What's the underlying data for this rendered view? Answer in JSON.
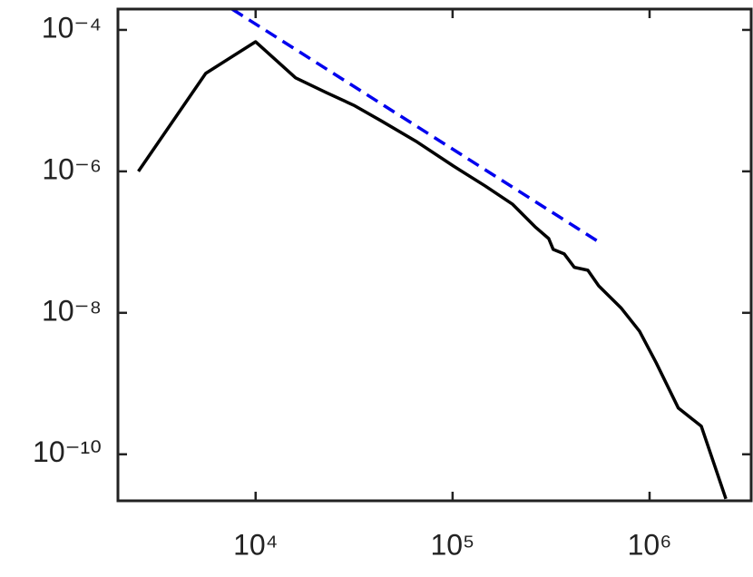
{
  "chart_data": {
    "type": "line",
    "xscale": "log",
    "yscale": "log",
    "xlim": [
      2000,
      3280000
    ],
    "ylim": [
      2.2e-11,
      0.000197
    ],
    "xticks": [
      {
        "value": 10000,
        "label": "10⁴"
      },
      {
        "value": 100000,
        "label": "10⁵"
      },
      {
        "value": 1000000,
        "label": "10⁶"
      }
    ],
    "yticks": [
      {
        "value": 0.0001,
        "label": "10⁻⁴"
      },
      {
        "value": 1e-06,
        "label": "10⁻⁶"
      },
      {
        "value": 1e-08,
        "label": "10⁻⁸"
      },
      {
        "value": 1e-10,
        "label": "10⁻¹⁰"
      }
    ],
    "series": [
      {
        "color": "#000000",
        "dash": false,
        "x": [
          2540,
          5580,
          10000,
          15960,
          22850,
          31500,
          43300,
          66100,
          101000,
          146600,
          201000,
          262000,
          307600,
          324000,
          369000,
          415000,
          486000,
          552000,
          719000,
          889000,
          1080000,
          1400000,
          1830000,
          2440000
        ],
        "values": [
          1e-06,
          2.43e-05,
          6.8e-05,
          2.1e-05,
          1.3e-05,
          8.6e-06,
          5.2e-06,
          2.6e-06,
          1.19e-06,
          6.2e-07,
          3.45e-07,
          1.65e-07,
          1.12e-07,
          7.9e-08,
          6.8e-08,
          4.4e-08,
          4e-08,
          2.4e-08,
          1.16e-08,
          5.5e-09,
          1.97e-09,
          4.5e-10,
          2.5e-10,
          2.35e-11
        ]
      },
      {
        "color": "#0000ee",
        "dash": true,
        "x": [
          7590,
          564000
        ],
        "values": [
          0.000197,
          9.7e-08
        ]
      }
    ]
  }
}
